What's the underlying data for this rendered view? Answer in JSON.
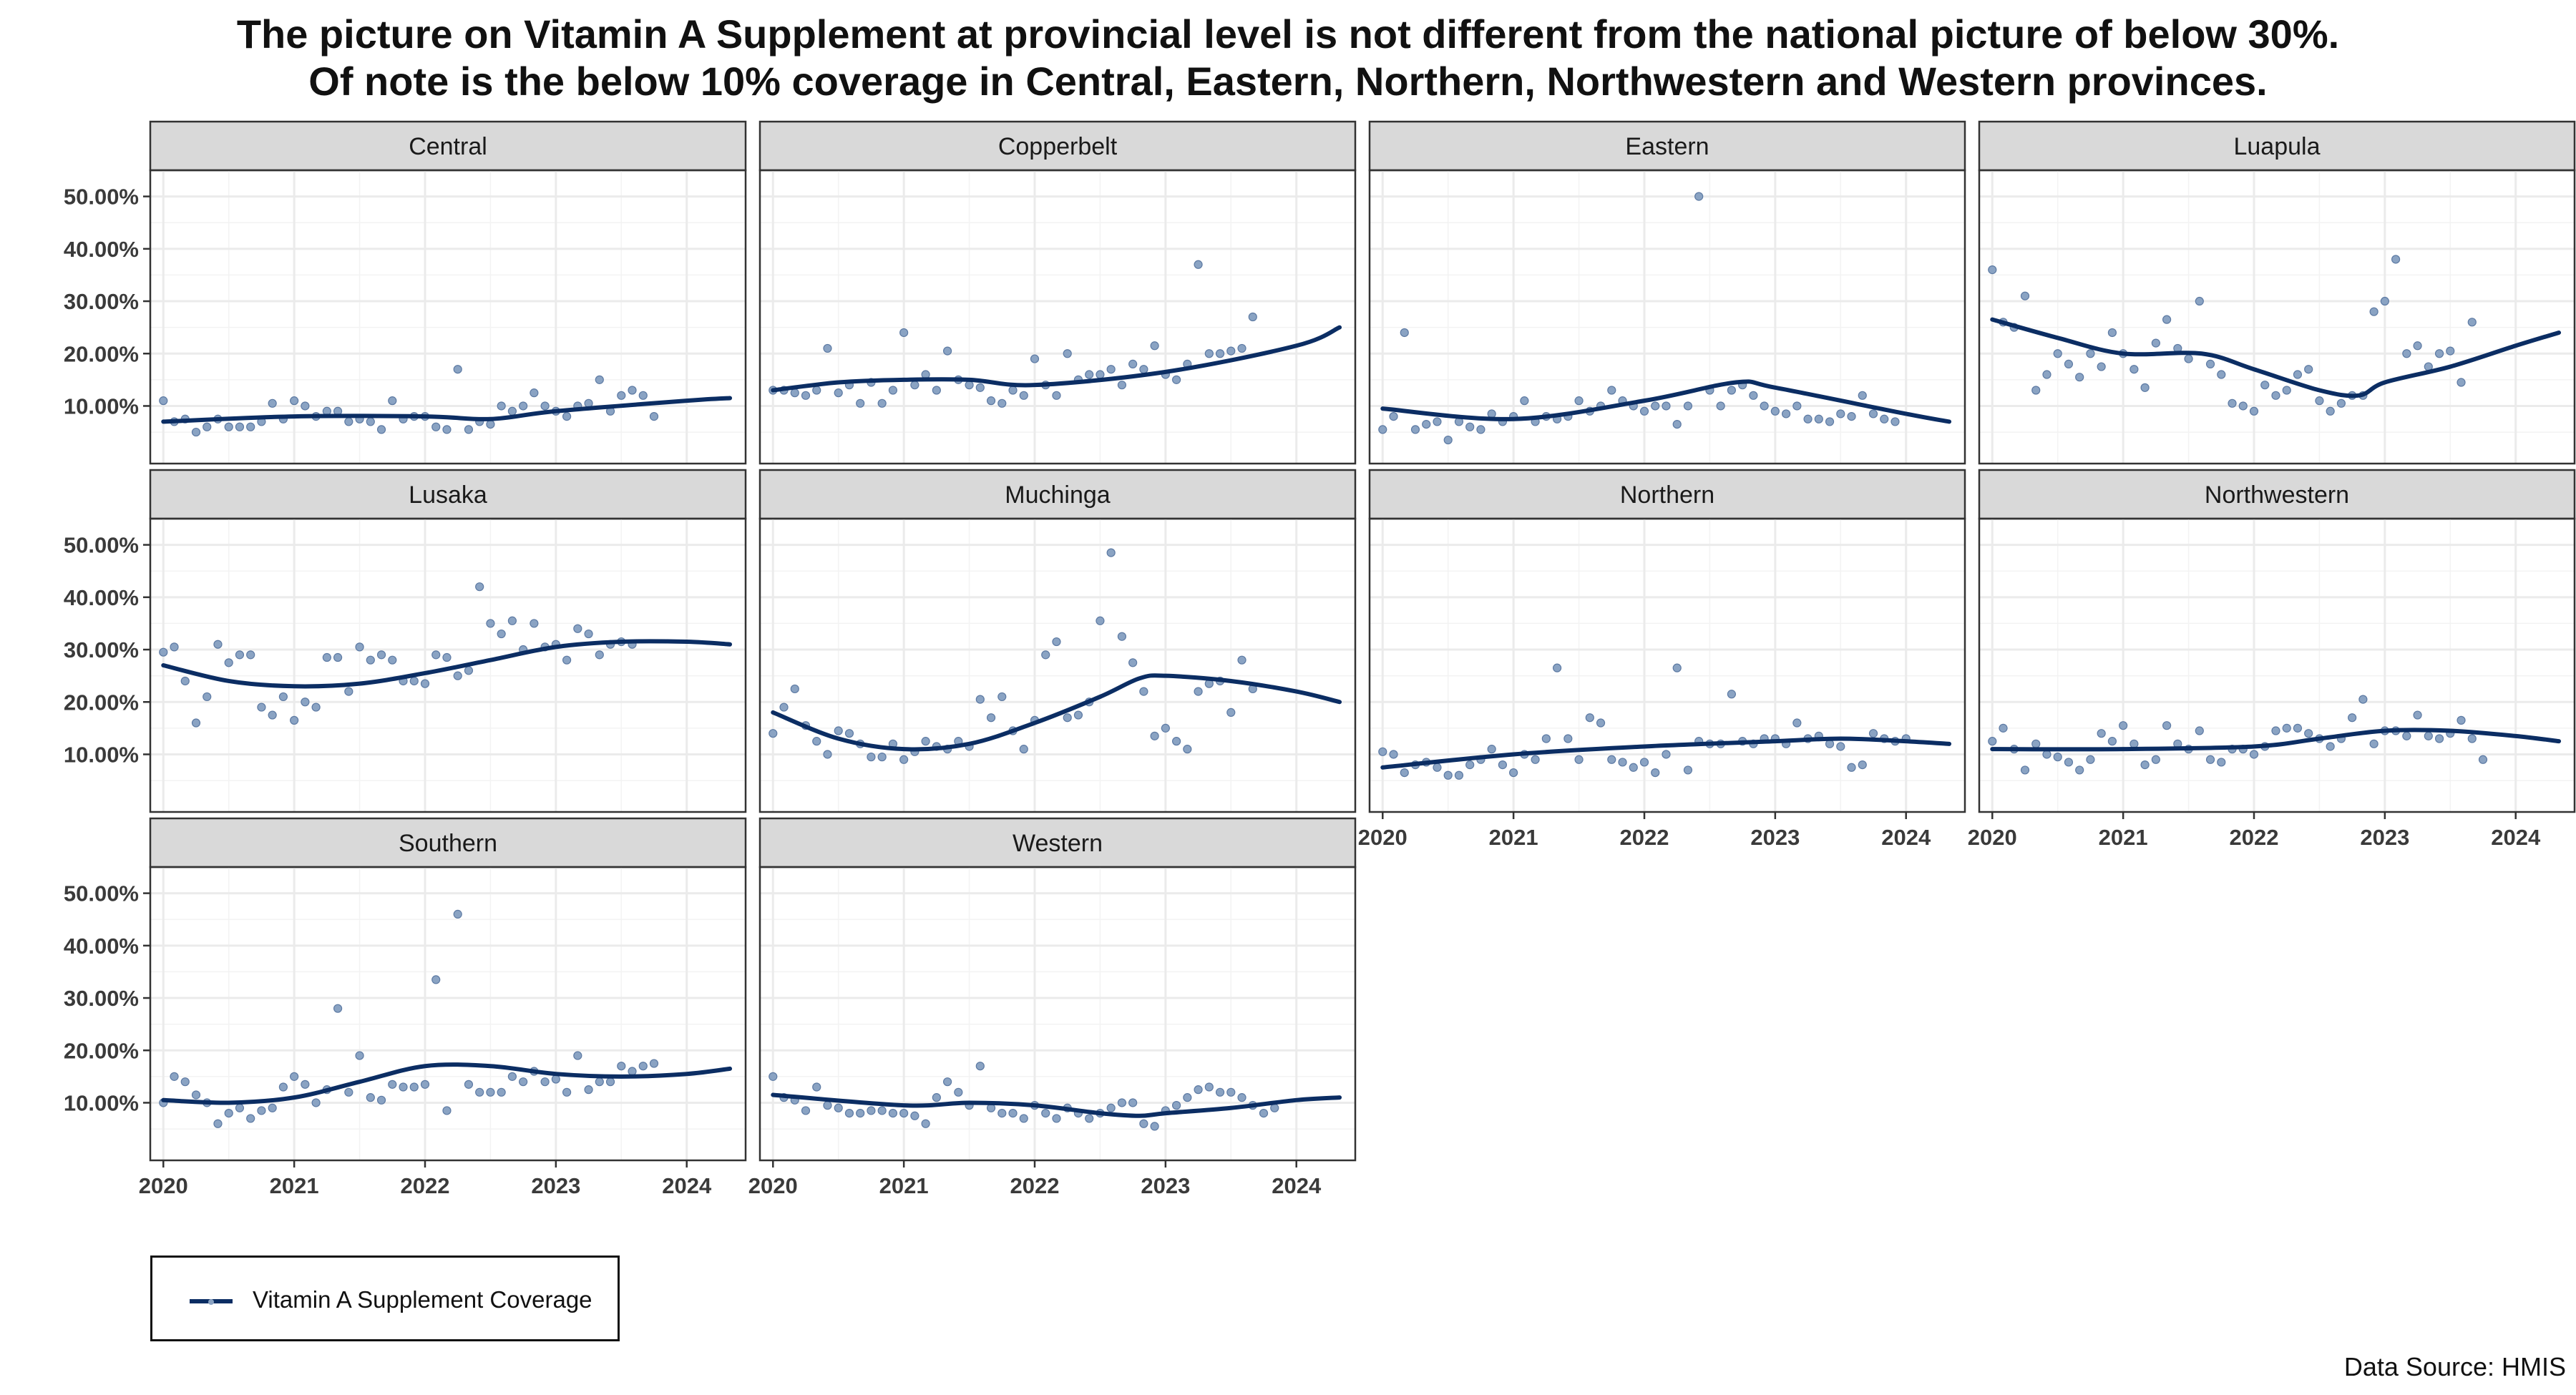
{
  "title_line1": "The picture on Vitamin A Supplement at provincial level is not different from the national picture of below 30%.",
  "title_line2": "Of note is the below 10% coverage in Central, Eastern, Northern, Northwestern and Western provinces.",
  "legend": {
    "label": "Vitamin A Supplement Coverage"
  },
  "source": "Data Source: HMIS",
  "colors": {
    "smooth": "#0b2d63",
    "points": "#8aa3c3",
    "strip": "#d9d9d9",
    "grid": "#ebebeb",
    "border": "#333333"
  },
  "chart_data": {
    "type": "scatter",
    "facet_layout": {
      "rows": 3,
      "cols": 4
    },
    "x_axis": {
      "range": [
        2019.9,
        2024.45
      ],
      "ticks": [
        2020,
        2021,
        2022,
        2023,
        2024
      ],
      "tick_labels": [
        "2020",
        "2021",
        "2022",
        "2023",
        "2024"
      ]
    },
    "y_axis": {
      "range": [
        -0.01,
        0.55
      ],
      "ticks": [
        0.1,
        0.2,
        0.3,
        0.4,
        0.5
      ],
      "tick_labels": [
        "10.00%",
        "20.00%",
        "30.00%",
        "40.00%",
        "50.00%"
      ]
    },
    "grid": true,
    "series_name": "Vitamin A Supplement Coverage",
    "facets": [
      {
        "name": "Central",
        "points": [
          11,
          7,
          7.5,
          5,
          6,
          7.5,
          6,
          6,
          6,
          7,
          10.5,
          7.5,
          11,
          10,
          8,
          9,
          9,
          7,
          7.5,
          7,
          5.5,
          11,
          7.5,
          8,
          8,
          6,
          5.5,
          17,
          5.5,
          7,
          6.5,
          10,
          9,
          10,
          12.5,
          10,
          9,
          8,
          10,
          10.5,
          15,
          9,
          12,
          13,
          12,
          8
        ],
        "smooth": [
          [
            2020,
            7
          ],
          [
            2021,
            8
          ],
          [
            2022,
            8
          ],
          [
            2022.5,
            7.5
          ],
          [
            2023,
            9
          ],
          [
            2024,
            11
          ],
          [
            2024.33,
            11.5
          ]
        ]
      },
      {
        "name": "Copperbelt",
        "points": [
          13,
          13,
          12.5,
          12,
          13,
          21,
          12.5,
          14,
          10.5,
          14.5,
          10.5,
          13,
          24,
          14,
          16,
          13,
          20.5,
          15,
          14,
          13.5,
          11,
          10.5,
          13,
          12,
          19,
          14,
          12,
          20,
          15,
          16,
          16,
          17,
          14,
          18,
          17,
          21.5,
          16,
          15,
          18,
          37,
          20,
          20,
          20.5,
          21,
          27
        ],
        "smooth": [
          [
            2020,
            13
          ],
          [
            2020.5,
            14.5
          ],
          [
            2021,
            15
          ],
          [
            2021.5,
            15
          ],
          [
            2022,
            14
          ],
          [
            2023,
            16.5
          ],
          [
            2024,
            21.5
          ],
          [
            2024.33,
            25
          ]
        ]
      },
      {
        "name": "Eastern",
        "points": [
          5.5,
          8,
          24,
          5.5,
          6.5,
          7,
          3.5,
          7,
          6,
          5.5,
          8.5,
          7,
          8,
          11,
          7,
          8,
          7.5,
          8,
          11,
          9,
          10,
          13,
          11,
          10,
          9,
          10,
          10,
          6.5,
          10,
          50,
          13,
          10,
          13,
          14,
          12,
          10,
          9,
          8.5,
          10,
          7.5,
          7.5,
          7,
          8.5,
          8,
          12,
          8.5,
          7.5,
          7
        ],
        "smooth": [
          [
            2020,
            9.5
          ],
          [
            2021,
            7.5
          ],
          [
            2022,
            11
          ],
          [
            2022.7,
            14.5
          ],
          [
            2023,
            13.5
          ],
          [
            2024,
            8.5
          ],
          [
            2024.33,
            7
          ]
        ]
      },
      {
        "name": "Luapula",
        "points": [
          36,
          26,
          25,
          31,
          13,
          16,
          20,
          18,
          15.5,
          20,
          17.5,
          24,
          20,
          17,
          13.5,
          22,
          26.5,
          21,
          19,
          30,
          18,
          16,
          10.5,
          10,
          9,
          14,
          12,
          13,
          16,
          17,
          11,
          9,
          10.5,
          12,
          12,
          28,
          30,
          38,
          20,
          21.5,
          17.5,
          20,
          20.5,
          14.5,
          26
        ],
        "smooth": [
          [
            2020,
            26.5
          ],
          [
            2020.5,
            23
          ],
          [
            2021,
            20
          ],
          [
            2021.6,
            20
          ],
          [
            2022,
            17
          ],
          [
            2022.5,
            13
          ],
          [
            2022.8,
            12
          ],
          [
            2023,
            14.5
          ],
          [
            2023.5,
            17.5
          ],
          [
            2024,
            21.5
          ],
          [
            2024.33,
            24
          ]
        ]
      },
      {
        "name": "Lusaka",
        "points": [
          29.5,
          30.5,
          24,
          16,
          21,
          31,
          27.5,
          29,
          29,
          19,
          17.5,
          21,
          16.5,
          20,
          19,
          28.5,
          28.5,
          22,
          30.5,
          28,
          29,
          28,
          24,
          24,
          23.5,
          29,
          28.5,
          25,
          26,
          42,
          35,
          33,
          35.5,
          30,
          35,
          30.5,
          31,
          28,
          34,
          33,
          29,
          31,
          31.5,
          31
        ],
        "smooth": [
          [
            2020,
            27
          ],
          [
            2020.5,
            24
          ],
          [
            2021,
            23
          ],
          [
            2021.5,
            23.5
          ],
          [
            2022,
            25.5
          ],
          [
            2022.5,
            28
          ],
          [
            2023,
            30.5
          ],
          [
            2023.5,
            31.5
          ],
          [
            2024,
            31.5
          ],
          [
            2024.33,
            31
          ]
        ]
      },
      {
        "name": "Muchinga",
        "points": [
          14,
          19,
          22.5,
          15.5,
          12.5,
          10,
          14.5,
          14,
          12,
          9.5,
          9.5,
          12,
          9,
          10.5,
          12.5,
          11.5,
          11,
          12.5,
          11.5,
          20.5,
          17,
          21,
          14.5,
          11,
          16.5,
          29,
          31.5,
          17,
          17.5,
          20,
          35.5,
          48.5,
          32.5,
          27.5,
          22,
          13.5,
          15,
          12.5,
          11,
          22,
          23.5,
          24,
          18,
          28,
          22.5
        ],
        "smooth": [
          [
            2020,
            18
          ],
          [
            2020.5,
            13
          ],
          [
            2021,
            11
          ],
          [
            2021.5,
            12
          ],
          [
            2022,
            16
          ],
          [
            2022.5,
            21
          ],
          [
            2022.8,
            24.5
          ],
          [
            2023,
            25
          ],
          [
            2023.5,
            24
          ],
          [
            2024,
            22
          ],
          [
            2024.33,
            20
          ]
        ]
      },
      {
        "name": "Northern",
        "points": [
          10.5,
          10,
          6.5,
          8,
          8.5,
          7.5,
          6,
          6,
          8,
          9,
          11,
          8,
          6.5,
          10,
          9,
          13,
          26.5,
          13,
          9,
          17,
          16,
          9,
          8.5,
          7.5,
          8.5,
          6.5,
          10,
          26.5,
          7,
          12.5,
          12,
          12,
          21.5,
          12.5,
          12,
          13,
          13,
          12,
          16,
          13,
          13.5,
          12,
          11.5,
          7.5,
          8,
          14,
          13,
          12.5,
          13
        ],
        "smooth": [
          [
            2020,
            7.5
          ],
          [
            2021,
            10
          ],
          [
            2022,
            11.5
          ],
          [
            2023,
            12.5
          ],
          [
            2023.5,
            13
          ],
          [
            2024,
            12.5
          ],
          [
            2024.33,
            12
          ]
        ]
      },
      {
        "name": "Northwestern",
        "points": [
          12.5,
          15,
          11,
          7,
          12,
          10,
          9.5,
          8.5,
          7,
          9,
          14,
          12.5,
          15.5,
          12,
          8,
          9,
          15.5,
          12,
          11,
          14.5,
          9,
          8.5,
          11,
          11,
          10,
          11.5,
          14.5,
          15,
          15,
          14,
          13,
          11.5,
          13,
          17,
          20.5,
          12,
          14.5,
          14.5,
          13.5,
          17.5,
          13.5,
          13,
          14,
          16.5,
          13,
          9
        ],
        "smooth": [
          [
            2020,
            11
          ],
          [
            2021,
            11
          ],
          [
            2022,
            11.5
          ],
          [
            2022.5,
            13
          ],
          [
            2023,
            14.5
          ],
          [
            2023.5,
            14.5
          ],
          [
            2024,
            13.5
          ],
          [
            2024.33,
            12.5
          ]
        ]
      },
      {
        "name": "Southern",
        "points": [
          10,
          15,
          14,
          11.5,
          10,
          6,
          8,
          9,
          7,
          8.5,
          9,
          13,
          15,
          13.5,
          10,
          12.5,
          28,
          12,
          19,
          11,
          10.5,
          13.5,
          13,
          13,
          13.5,
          33.5,
          8.5,
          46,
          13.5,
          12,
          12,
          12,
          15,
          14,
          16,
          14,
          14.5,
          12,
          19,
          12.5,
          14,
          14,
          17,
          16,
          17,
          17.5
        ],
        "smooth": [
          [
            2020,
            10.5
          ],
          [
            2020.5,
            10
          ],
          [
            2021,
            11
          ],
          [
            2021.5,
            14
          ],
          [
            2022,
            17
          ],
          [
            2022.5,
            17
          ],
          [
            2023,
            15.5
          ],
          [
            2023.5,
            15
          ],
          [
            2024,
            15.5
          ],
          [
            2024.33,
            16.5
          ]
        ]
      },
      {
        "name": "Western",
        "points": [
          15,
          11,
          10.5,
          8.5,
          13,
          9.5,
          9,
          8,
          8,
          8.5,
          8.5,
          8,
          8,
          7.5,
          6,
          11,
          14,
          12,
          9.5,
          17,
          9,
          8,
          8,
          7,
          9.5,
          8,
          7,
          9,
          8,
          7,
          8,
          9,
          10,
          10,
          6,
          5.5,
          8.5,
          9.5,
          11,
          12.5,
          13,
          12,
          12,
          11,
          9.5,
          8,
          9
        ],
        "smooth": [
          [
            2020,
            11.5
          ],
          [
            2021,
            9.5
          ],
          [
            2021.5,
            10
          ],
          [
            2022,
            9.5
          ],
          [
            2022.5,
            8
          ],
          [
            2022.8,
            7.5
          ],
          [
            2023,
            8
          ],
          [
            2023.5,
            9
          ],
          [
            2024,
            10.5
          ],
          [
            2024.33,
            11
          ]
        ]
      }
    ]
  }
}
